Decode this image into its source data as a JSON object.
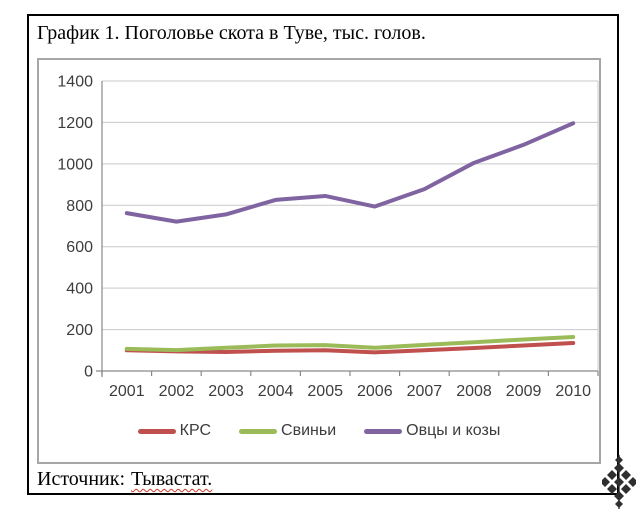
{
  "title": "График 1. Поголовье скота в Туве, тыс. голов.",
  "source": {
    "label": "Источник:",
    "value": "Тывастат."
  },
  "icons": {
    "corner_ornament": "tuvan-knot-ornament"
  },
  "chart_data": {
    "type": "line",
    "title": "График 1. Поголовье скота в Туве, тыс. голов.",
    "categories": [
      "2001",
      "2002",
      "2003",
      "2004",
      "2005",
      "2006",
      "2007",
      "2008",
      "2009",
      "2010"
    ],
    "series": [
      {
        "name": "КРС",
        "color": "#C0504D",
        "values": [
          100,
          95,
          92,
          98,
          100,
          90,
          100,
          111,
          123,
          135
        ]
      },
      {
        "name": "Свиньи",
        "color": "#9BBB59",
        "values": [
          107,
          101,
          112,
          123,
          125,
          112,
          126,
          139,
          152,
          164
        ]
      },
      {
        "name": "Овцы и козы",
        "color": "#8064A2",
        "values": [
          762,
          721,
          756,
          826,
          845,
          794,
          878,
          1005,
          1092,
          1196
        ]
      }
    ],
    "xlabel": "",
    "ylabel": "",
    "ylim": [
      0,
      1400
    ],
    "ytick_step": 200,
    "grid": true,
    "legend_position": "bottom",
    "axis_color": "#898989",
    "grid_color": "#c9c9c9",
    "label_color": "#3d3d3d"
  }
}
